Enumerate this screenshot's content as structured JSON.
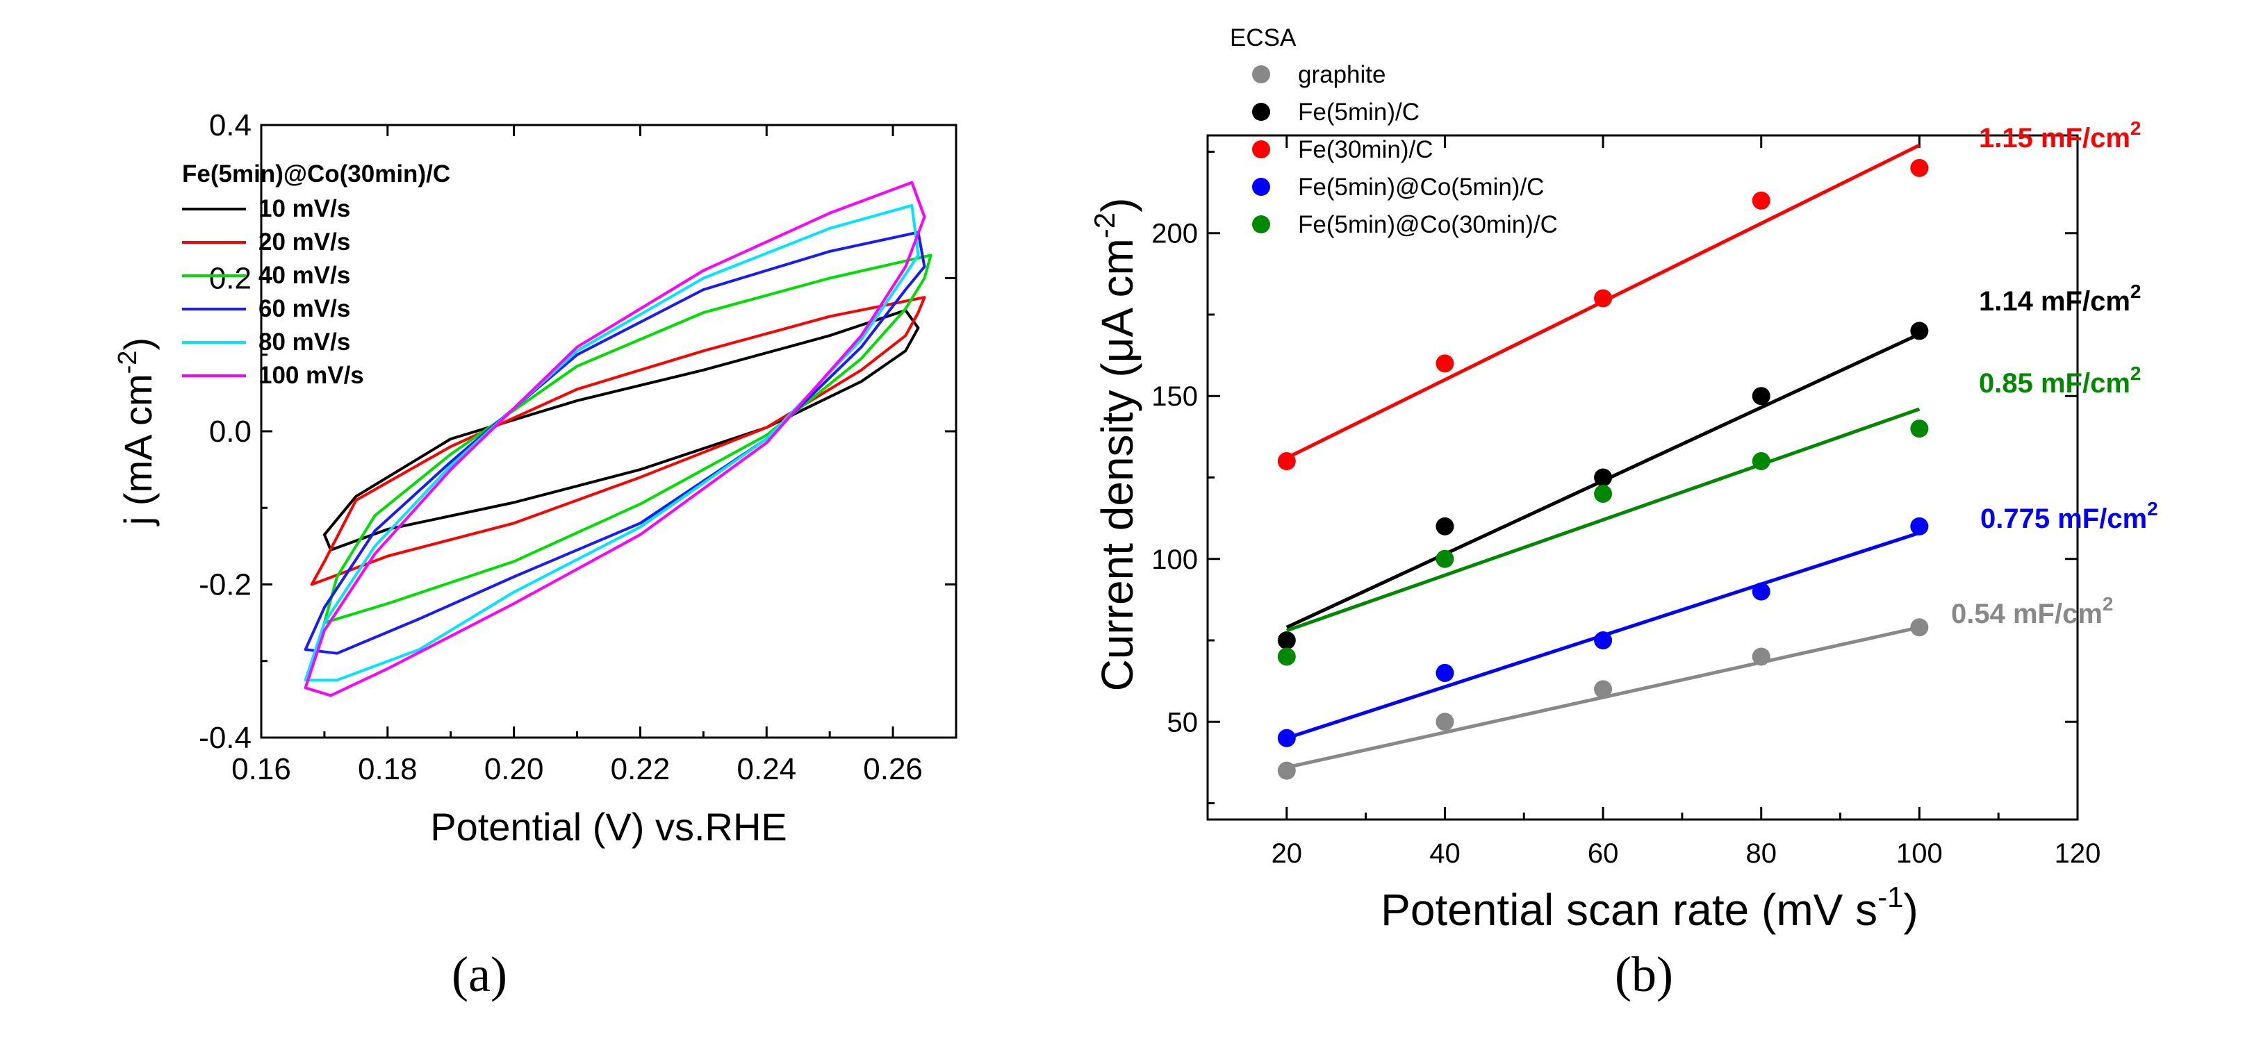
{
  "chart_data": [
    {
      "type": "line",
      "panel_label": "a",
      "xlabel": "Potential (V) vs.RHE",
      "ylabel": {
        "main": "j (mA cm",
        "sup": "-2",
        "close": ")"
      },
      "xlim": [
        0.16,
        0.27
      ],
      "ylim": [
        -0.4,
        0.4
      ],
      "xticks": [
        0.16,
        0.18,
        0.2,
        0.22,
        0.24,
        0.26
      ],
      "xtick_labels": [
        "0.16",
        "0.18",
        "0.20",
        "0.22",
        "0.24",
        "0.26"
      ],
      "yticks": [
        -0.4,
        -0.2,
        0.0,
        0.2,
        0.4
      ],
      "ytick_labels": [
        "-0.4",
        "-0.2",
        "0.0",
        "0.2",
        "0.4"
      ],
      "legend_title": "Fe(5min)@Co(30min)/C",
      "legend_position": "top-left",
      "series": [
        {
          "name": "10 mV/s",
          "color": "#000000",
          "forward": [
            [
              0.171,
              -0.155
            ],
            [
              0.18,
              -0.128
            ],
            [
              0.2,
              -0.093
            ],
            [
              0.22,
              -0.05
            ],
            [
              0.24,
              0.005
            ],
            [
              0.255,
              0.065
            ],
            [
              0.262,
              0.105
            ],
            [
              0.264,
              0.135
            ]
          ],
          "reverse": [
            [
              0.264,
              0.135
            ],
            [
              0.262,
              0.158
            ],
            [
              0.25,
              0.125
            ],
            [
              0.23,
              0.08
            ],
            [
              0.21,
              0.04
            ],
            [
              0.19,
              -0.01
            ],
            [
              0.175,
              -0.085
            ],
            [
              0.17,
              -0.135
            ],
            [
              0.171,
              -0.155
            ]
          ]
        },
        {
          "name": "20 mV/s",
          "color": "#ff0000",
          "forward": [
            [
              0.168,
              -0.2
            ],
            [
              0.18,
              -0.163
            ],
            [
              0.2,
              -0.12
            ],
            [
              0.22,
              -0.06
            ],
            [
              0.24,
              0.005
            ],
            [
              0.255,
              0.08
            ],
            [
              0.262,
              0.125
            ],
            [
              0.264,
              0.155
            ]
          ],
          "reverse": [
            [
              0.264,
              0.155
            ],
            [
              0.265,
              0.175
            ],
            [
              0.25,
              0.15
            ],
            [
              0.23,
              0.105
            ],
            [
              0.21,
              0.055
            ],
            [
              0.19,
              -0.02
            ],
            [
              0.175,
              -0.09
            ],
            [
              0.17,
              -0.17
            ],
            [
              0.168,
              -0.2
            ]
          ]
        },
        {
          "name": "40 mV/s",
          "color": "#00dd00",
          "forward": [
            [
              0.17,
              -0.25
            ],
            [
              0.18,
              -0.225
            ],
            [
              0.2,
              -0.17
            ],
            [
              0.22,
              -0.095
            ],
            [
              0.24,
              -0.005
            ],
            [
              0.255,
              0.095
            ],
            [
              0.262,
              0.16
            ],
            [
              0.265,
              0.2
            ]
          ],
          "reverse": [
            [
              0.265,
              0.2
            ],
            [
              0.266,
              0.23
            ],
            [
              0.25,
              0.2
            ],
            [
              0.23,
              0.155
            ],
            [
              0.21,
              0.085
            ],
            [
              0.19,
              -0.03
            ],
            [
              0.178,
              -0.11
            ],
            [
              0.172,
              -0.19
            ],
            [
              0.17,
              -0.25
            ]
          ]
        },
        {
          "name": "60 mV/s",
          "color": "#1a1aff",
          "forward": [
            [
              0.167,
              -0.285
            ],
            [
              0.172,
              -0.29
            ],
            [
              0.185,
              -0.245
            ],
            [
              0.2,
              -0.19
            ],
            [
              0.22,
              -0.12
            ],
            [
              0.24,
              -0.01
            ],
            [
              0.255,
              0.11
            ],
            [
              0.262,
              0.185
            ],
            [
              0.265,
              0.215
            ]
          ],
          "reverse": [
            [
              0.265,
              0.215
            ],
            [
              0.264,
              0.26
            ],
            [
              0.25,
              0.235
            ],
            [
              0.23,
              0.185
            ],
            [
              0.21,
              0.1
            ],
            [
              0.19,
              -0.04
            ],
            [
              0.178,
              -0.13
            ],
            [
              0.17,
              -0.23
            ],
            [
              0.167,
              -0.285
            ]
          ]
        },
        {
          "name": "80 mV/s",
          "color": "#00e5ff",
          "forward": [
            [
              0.167,
              -0.325
            ],
            [
              0.172,
              -0.325
            ],
            [
              0.185,
              -0.285
            ],
            [
              0.2,
              -0.21
            ],
            [
              0.22,
              -0.125
            ],
            [
              0.24,
              -0.01
            ],
            [
              0.255,
              0.12
            ],
            [
              0.262,
              0.205
            ],
            [
              0.264,
              0.23
            ]
          ],
          "reverse": [
            [
              0.264,
              0.23
            ],
            [
              0.263,
              0.295
            ],
            [
              0.25,
              0.265
            ],
            [
              0.23,
              0.2
            ],
            [
              0.21,
              0.105
            ],
            [
              0.19,
              -0.045
            ],
            [
              0.178,
              -0.15
            ],
            [
              0.17,
              -0.25
            ],
            [
              0.167,
              -0.325
            ]
          ]
        },
        {
          "name": "100 mV/s",
          "color": "#ff00ff",
          "forward": [
            [
              0.167,
              -0.335
            ],
            [
              0.171,
              -0.345
            ],
            [
              0.18,
              -0.31
            ],
            [
              0.2,
              -0.225
            ],
            [
              0.22,
              -0.135
            ],
            [
              0.24,
              -0.015
            ],
            [
              0.255,
              0.125
            ],
            [
              0.262,
              0.215
            ],
            [
              0.265,
              0.28
            ]
          ],
          "reverse": [
            [
              0.265,
              0.28
            ],
            [
              0.263,
              0.325
            ],
            [
              0.25,
              0.285
            ],
            [
              0.23,
              0.21
            ],
            [
              0.21,
              0.11
            ],
            [
              0.19,
              -0.05
            ],
            [
              0.178,
              -0.16
            ],
            [
              0.17,
              -0.26
            ],
            [
              0.167,
              -0.335
            ]
          ]
        }
      ]
    },
    {
      "type": "scatter",
      "panel_label": "b",
      "xlabel": {
        "main": "Potential scan rate (mV s",
        "sup": "-1",
        "close": ")"
      },
      "ylabel": {
        "main": "Current density  (μA  cm",
        "sup": "-2",
        "close": ")"
      },
      "xlim": [
        10,
        120
      ],
      "ylim": [
        20,
        230
      ],
      "xticks": [
        20,
        40,
        60,
        80,
        100,
        120
      ],
      "xtick_labels": [
        "20",
        "40",
        "60",
        "80",
        "100",
        "120"
      ],
      "yticks": [
        50,
        100,
        150,
        200
      ],
      "ytick_labels": [
        "50",
        "100",
        "150",
        "200"
      ],
      "legend_title": "ECSA",
      "legend_position": "top-left",
      "x": [
        20,
        40,
        60,
        80,
        100
      ],
      "series": [
        {
          "name": "graphite",
          "color": "#888888",
          "values": [
            35,
            50,
            60,
            70,
            79
          ],
          "fit": [
            36,
            79
          ],
          "annotation": {
            "text": "0.54 mF/cm",
            "sup": "2"
          }
        },
        {
          "name": "Fe(5min)/C",
          "color": "#000000",
          "values": [
            75,
            110,
            125,
            150,
            170
          ],
          "fit": [
            79,
            169
          ],
          "annotation": {
            "text": "1.14 mF/cm",
            "sup": "2"
          }
        },
        {
          "name": "Fe(30min)/C",
          "color": "#ff0000",
          "values": [
            130,
            160,
            180,
            210,
            220
          ],
          "fit": [
            131,
            227
          ],
          "annotation": {
            "text": "1.15 mF/cm",
            "sup": "2"
          }
        },
        {
          "name": "Fe(5min)@Co(5min)/C",
          "color": "#0000ff",
          "values": [
            45,
            65,
            75,
            90,
            110
          ],
          "fit": [
            45,
            108
          ],
          "annotation": {
            "text": "0.775 mF/cm",
            "sup": "2"
          }
        },
        {
          "name": "Fe(5min)@Co(30min)/C",
          "color": "#008800",
          "values": [
            70,
            100,
            120,
            130,
            140
          ],
          "fit": [
            78,
            146
          ],
          "annotation": {
            "text": "0.85 mF/cm",
            "sup": "2"
          }
        }
      ]
    }
  ],
  "captions": {
    "a": "(a)",
    "b": "(b)"
  }
}
